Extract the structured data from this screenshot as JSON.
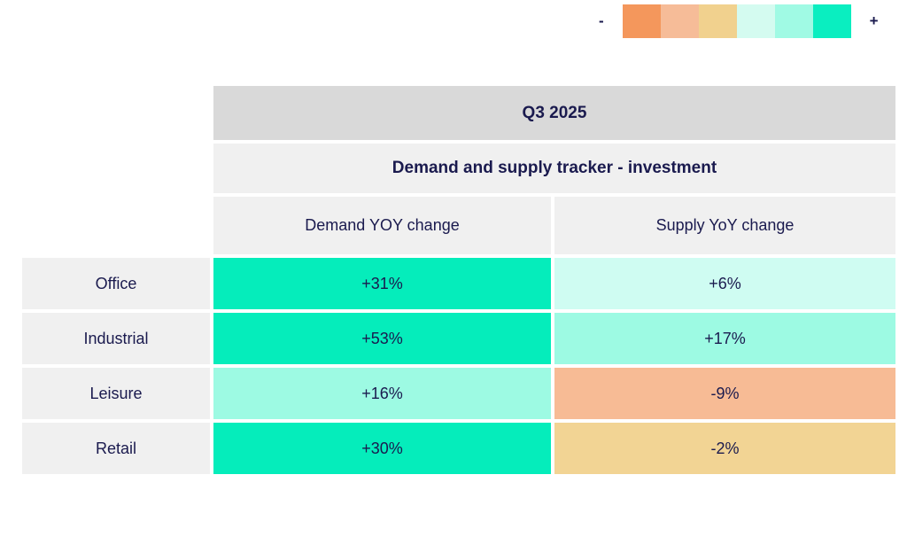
{
  "legend": {
    "minus_label": "-",
    "plus_label": "+",
    "colors": [
      "#F4975C",
      "#F6BC98",
      "#F1D18E",
      "#D4FBF0",
      "#A0FAE4",
      "#0AEEC0"
    ]
  },
  "table": {
    "period": "Q3 2025",
    "subtitle": "Demand and supply tracker - investment",
    "columns": [
      "Demand YOY change",
      "Supply YoY change"
    ],
    "rows": [
      {
        "label": "Office",
        "demand": "+31%",
        "demand_color": "#05EDBB",
        "supply": "+6%",
        "supply_color": "#CFFCF2"
      },
      {
        "label": "Industrial",
        "demand": "+53%",
        "demand_color": "#05EDBB",
        "supply": "+17%",
        "supply_color": "#9DFAE3"
      },
      {
        "label": "Leisure",
        "demand": "+16%",
        "demand_color": "#9DFAE3",
        "supply": "-9%",
        "supply_color": "#F7BB95"
      },
      {
        "label": "Retail",
        "demand": "+30%",
        "demand_color": "#05EDBB",
        "supply": "-2%",
        "supply_color": "#F2D494"
      }
    ]
  },
  "colors": {
    "text": "#1A1A4E",
    "header_bg": "#D9D9D9",
    "label_bg": "#F0F0F0",
    "page_bg": "#FFFFFF"
  },
  "chart_data": {
    "type": "heatmap",
    "title": "Q3 2025",
    "subtitle": "Demand and supply tracker - investment",
    "columns": [
      "Demand YOY change",
      "Supply YoY change"
    ],
    "rows": [
      "Office",
      "Industrial",
      "Leisure",
      "Retail"
    ],
    "values": [
      [
        31,
        6
      ],
      [
        53,
        17
      ],
      [
        16,
        -9
      ],
      [
        30,
        -2
      ]
    ],
    "unit": "percent year-over-year change",
    "legend_position": "top-right",
    "color_scale": "diverging: orange = negative, teal = positive"
  }
}
